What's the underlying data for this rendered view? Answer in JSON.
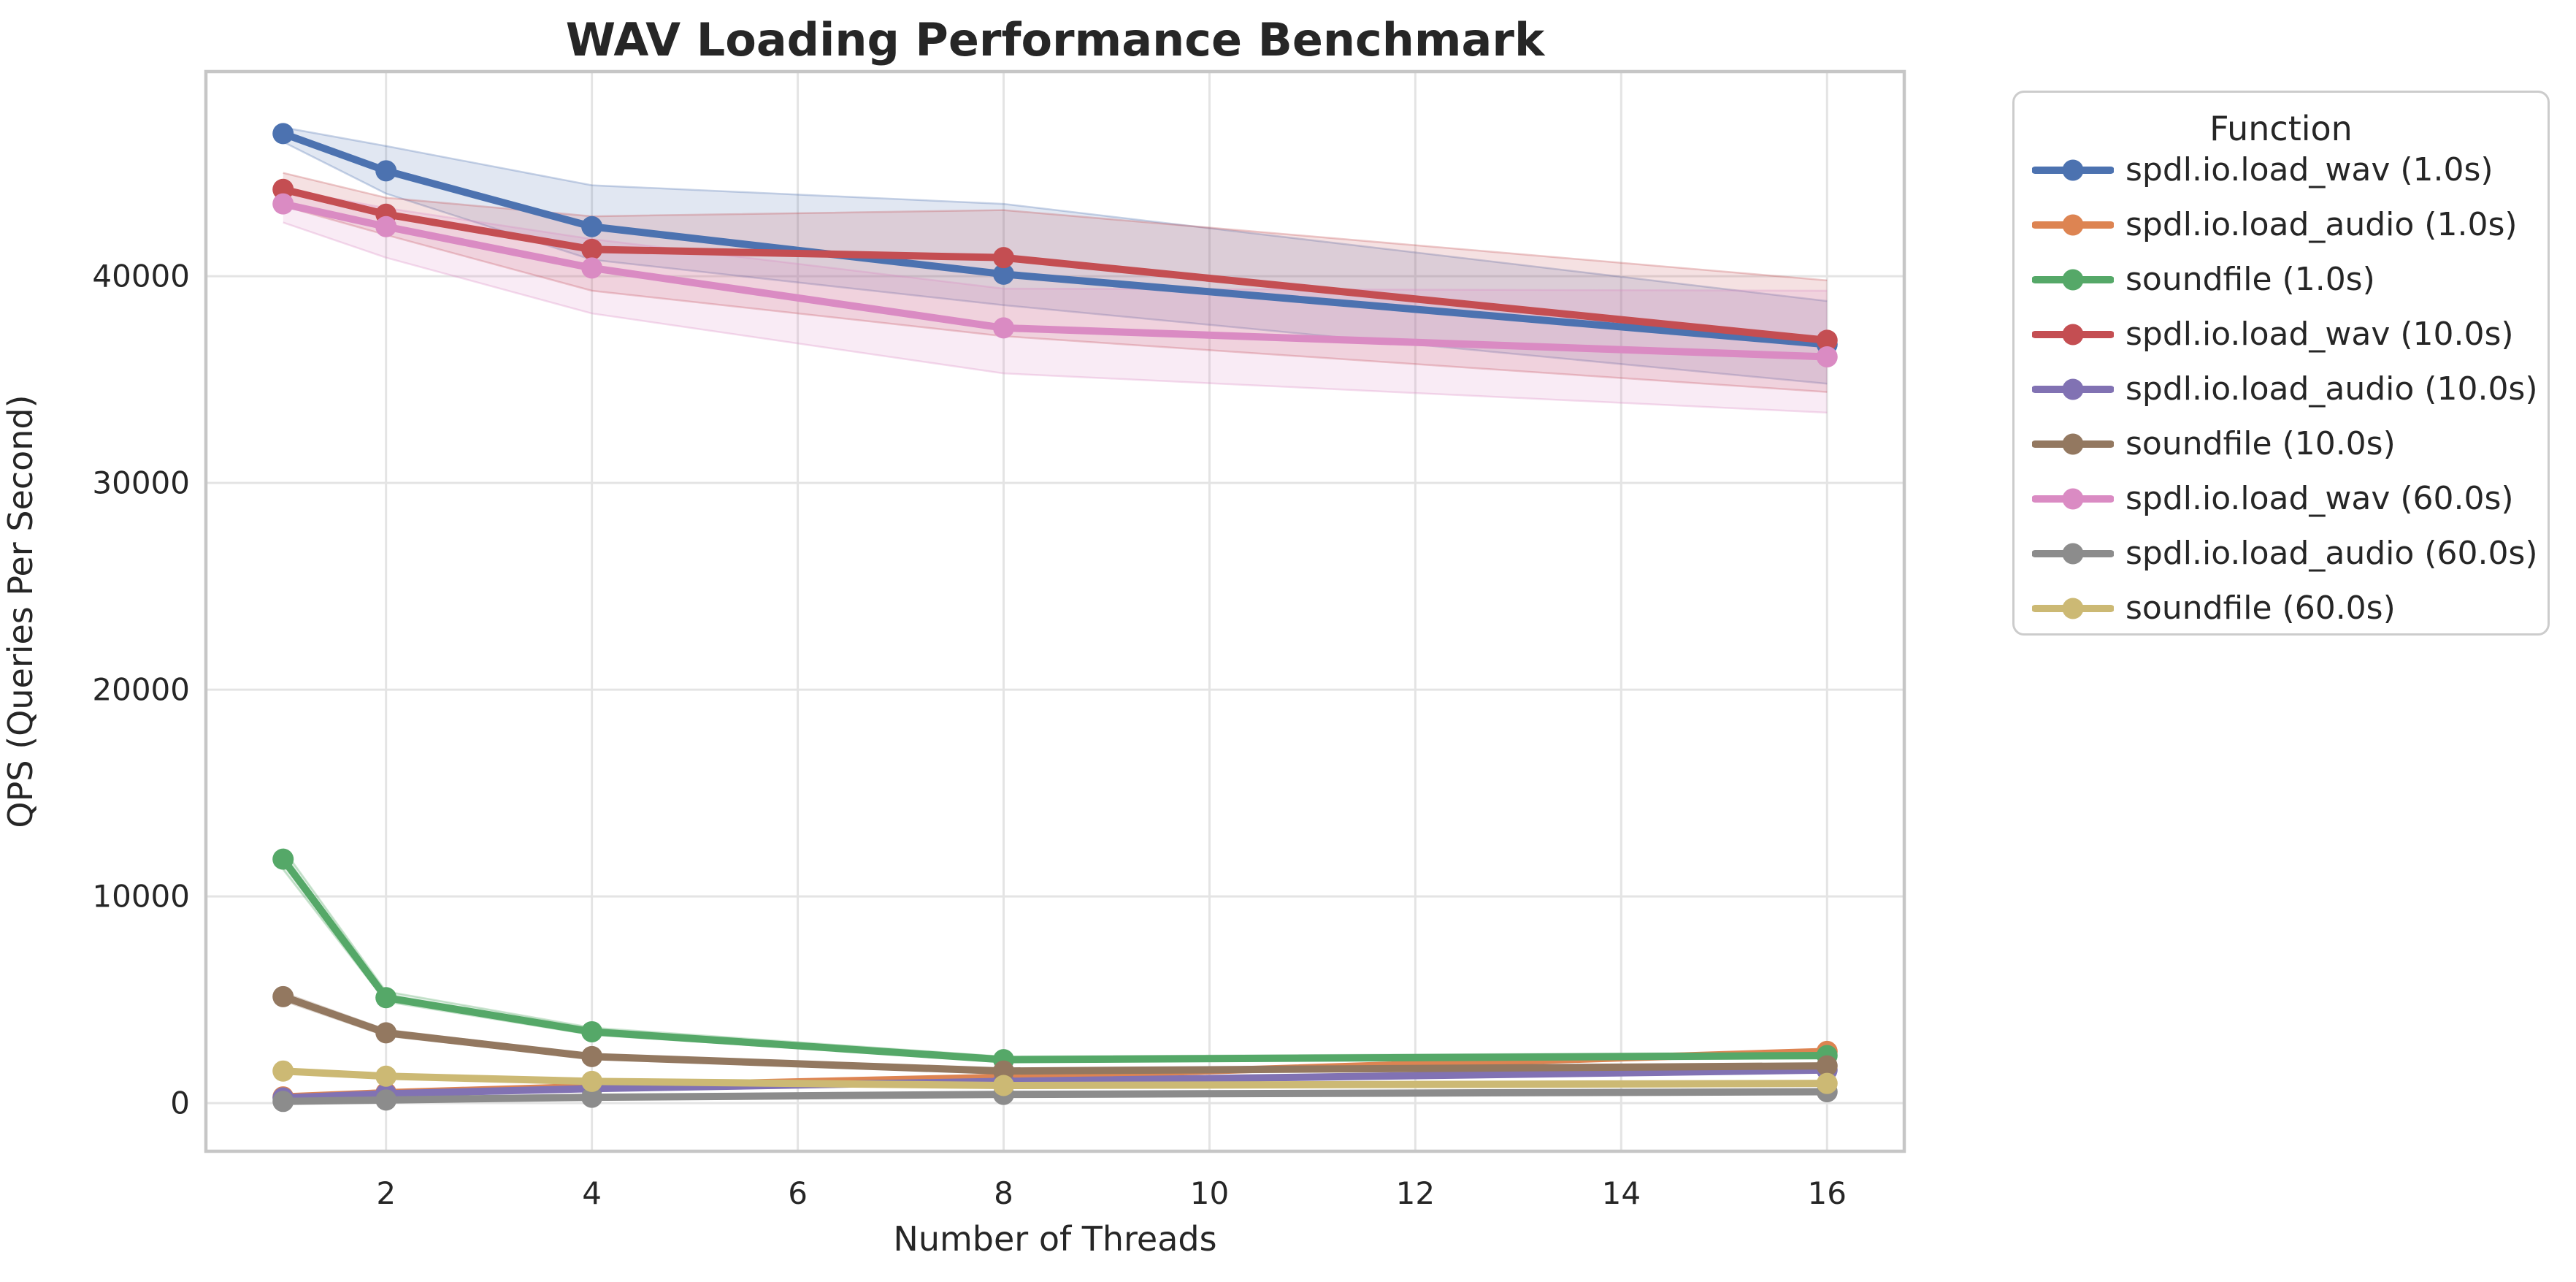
{
  "figure": {
    "background_color": "#ffffff",
    "text_color": "#262626",
    "grid_color": "#e4e4e4",
    "spine_color": "#c6c6c6",
    "legend_border_color": "#cccccc"
  },
  "chart_data": {
    "type": "line",
    "title": "WAV Loading Performance Benchmark",
    "xlabel": "Number of Threads",
    "ylabel": "QPS (Queries Per Second)",
    "legend_title": "Function",
    "legend_position": "outside-right-top",
    "grid": true,
    "x": [
      1,
      2,
      4,
      8,
      16
    ],
    "xticks": [
      2,
      4,
      6,
      8,
      10,
      12,
      14,
      16
    ],
    "yticks": [
      0,
      10000,
      20000,
      30000,
      40000
    ],
    "xlim": [
      0.25,
      16.75
    ],
    "ylim": [
      -2330,
      49900
    ],
    "series": [
      {
        "name": "spdl.io.load_wav (1.0s)",
        "color": "#4C72B0",
        "values": [
          46900,
          45100,
          42400,
          40100,
          36700
        ],
        "ci_lo": [
          46500,
          44000,
          40800,
          38600,
          34800
        ],
        "ci_hi": [
          47200,
          46300,
          44400,
          43500,
          38800
        ]
      },
      {
        "name": "spdl.io.load_audio (1.0s)",
        "color": "#DD8452",
        "values": [
          300,
          500,
          800,
          1250,
          2500
        ],
        "ci_lo": null,
        "ci_hi": null
      },
      {
        "name": "soundfile (1.0s)",
        "color": "#55A868",
        "values": [
          11800,
          5100,
          3450,
          2100,
          2300
        ],
        "ci_lo": [
          11300,
          4900,
          3300,
          2000,
          2150
        ],
        "ci_hi": [
          12300,
          5400,
          3650,
          2250,
          2450
        ]
      },
      {
        "name": "spdl.io.load_wav (10.0s)",
        "color": "#C44E52",
        "values": [
          44200,
          43000,
          41300,
          40900,
          36900
        ],
        "ci_lo": [
          43400,
          42000,
          39300,
          37100,
          34400
        ],
        "ci_hi": [
          45000,
          43800,
          42900,
          43200,
          39800
        ]
      },
      {
        "name": "spdl.io.load_audio (10.0s)",
        "color": "#8172B3",
        "values": [
          250,
          450,
          700,
          1050,
          1600
        ],
        "ci_lo": null,
        "ci_hi": null
      },
      {
        "name": "soundfile (10.0s)",
        "color": "#937860",
        "values": [
          5150,
          3400,
          2250,
          1550,
          1800
        ],
        "ci_lo": [
          4950,
          3250,
          2150,
          1480,
          1700
        ],
        "ci_hi": [
          5350,
          3550,
          2350,
          1620,
          1900
        ]
      },
      {
        "name": "spdl.io.load_wav (60.0s)",
        "color": "#DA8BC3",
        "values": [
          43500,
          42400,
          40400,
          37500,
          36100
        ],
        "ci_lo": [
          42600,
          40900,
          38200,
          35300,
          33400
        ],
        "ci_hi": [
          44200,
          43300,
          41800,
          39400,
          39300
        ]
      },
      {
        "name": "spdl.io.load_audio (60.0s)",
        "color": "#8C8C8C",
        "values": [
          80,
          150,
          280,
          420,
          550
        ],
        "ci_lo": null,
        "ci_hi": null
      },
      {
        "name": "soundfile (60.0s)",
        "color": "#CCB974",
        "values": [
          1550,
          1300,
          1050,
          850,
          950
        ],
        "ci_lo": [
          1450,
          1220,
          980,
          800,
          880
        ],
        "ci_hi": [
          1650,
          1380,
          1120,
          920,
          1030
        ]
      }
    ]
  }
}
